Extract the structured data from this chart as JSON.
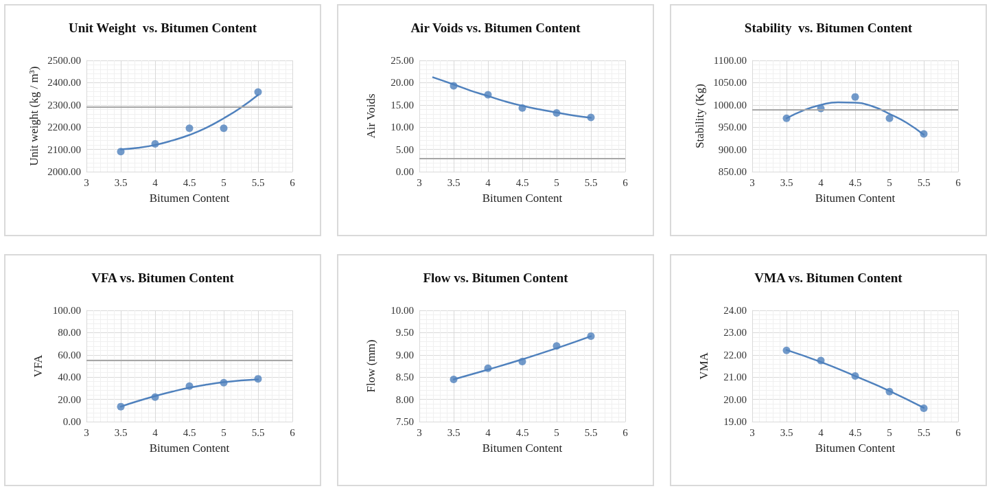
{
  "chart_data": [
    {
      "type": "scatter",
      "title": "Unit Weight  vs. Bitumen Content",
      "xlabel": "Bitumen Content",
      "ylabel": "Unit weight (kg / m³)",
      "xlim": [
        3,
        6
      ],
      "xticks": [
        3,
        3.5,
        4,
        4.5,
        5,
        5.5,
        6
      ],
      "ylim": [
        2000,
        2500
      ],
      "yticks": [
        {
          "value": 2000,
          "label": "2000.00"
        },
        {
          "value": 2100,
          "label": "2100.00"
        },
        {
          "value": 2200,
          "label": "2200.00"
        },
        {
          "value": 2300,
          "label": "2300.00"
        },
        {
          "value": 2400,
          "label": "2400.00"
        },
        {
          "value": 2500,
          "label": "2500.00"
        }
      ],
      "grid": true,
      "ref_lines": [
        {
          "axis": "y",
          "value": 2290,
          "color": "#a6a6a6"
        }
      ],
      "series": [
        {
          "color": "#4f81bd",
          "marker": "circle",
          "x": [
            3.5,
            4,
            4.5,
            5,
            5.5
          ],
          "values": [
            2090,
            2125,
            2195,
            2195,
            2358
          ]
        },
        {
          "type": "line",
          "color": "#4f81bd",
          "marker": "none",
          "x": [
            3.5,
            3.75,
            4,
            4.25,
            4.5,
            4.75,
            5,
            5.25,
            5.5
          ],
          "values": [
            2100,
            2107,
            2120,
            2140,
            2165,
            2198,
            2240,
            2288,
            2345
          ]
        }
      ]
    },
    {
      "type": "scatter",
      "title": "Air Voids vs. Bitumen Content",
      "xlabel": "Bitumen Content",
      "ylabel": "Air Voids",
      "xlim": [
        3,
        6
      ],
      "xticks": [
        3,
        3.5,
        4,
        4.5,
        5,
        5.5,
        6
      ],
      "ylim": [
        0,
        25
      ],
      "yticks": [
        {
          "value": 0,
          "label": "0.00"
        },
        {
          "value": 5,
          "label": "5.00"
        },
        {
          "value": 10,
          "label": "10.00"
        },
        {
          "value": 15,
          "label": "15.00"
        },
        {
          "value": 20,
          "label": "20.00"
        },
        {
          "value": 25,
          "label": "25.00"
        }
      ],
      "grid": true,
      "ref_lines": [
        {
          "axis": "y",
          "value": 3,
          "color": "#a6a6a6"
        }
      ],
      "series": [
        {
          "color": "#4f81bd",
          "marker": "circle",
          "x": [
            3.5,
            4,
            4.5,
            5,
            5.5
          ],
          "values": [
            19.3,
            17.3,
            14.3,
            13.2,
            12.2
          ]
        },
        {
          "type": "line",
          "color": "#4f81bd",
          "marker": "none",
          "x": [
            3.2,
            3.5,
            3.75,
            4,
            4.25,
            4.5,
            4.75,
            5,
            5.25,
            5.5
          ],
          "values": [
            21.2,
            19.6,
            18.2,
            17.0,
            15.8,
            14.8,
            14.0,
            13.3,
            12.6,
            12.1
          ]
        }
      ]
    },
    {
      "type": "scatter",
      "title": "Stability  vs. Bitumen Content",
      "xlabel": "Bitumen Content",
      "ylabel": "Stability (Kg)",
      "xlim": [
        3,
        6
      ],
      "xticks": [
        3,
        3.5,
        4,
        4.5,
        5,
        5.5,
        6
      ],
      "ylim": [
        850,
        1100
      ],
      "yticks": [
        {
          "value": 850,
          "label": "850.00"
        },
        {
          "value": 900,
          "label": "900.00"
        },
        {
          "value": 950,
          "label": "950.00"
        },
        {
          "value": 1000,
          "label": "1000.00"
        },
        {
          "value": 1050,
          "label": "1050.00"
        },
        {
          "value": 1100,
          "label": "1100.00"
        }
      ],
      "grid": true,
      "ref_lines": [
        {
          "axis": "y",
          "value": 990,
          "color": "#a6a6a6"
        }
      ],
      "series": [
        {
          "color": "#4f81bd",
          "marker": "circle",
          "x": [
            3.5,
            4,
            4.5,
            5,
            5.5
          ],
          "values": [
            970,
            992,
            1018,
            970,
            935
          ]
        },
        {
          "type": "line",
          "color": "#4f81bd",
          "marker": "none",
          "x": [
            3.5,
            3.75,
            4,
            4.25,
            4.5,
            4.75,
            5,
            5.25,
            5.5
          ],
          "values": [
            970,
            988,
            1000,
            1006,
            1005,
            997,
            980,
            960,
            933
          ]
        }
      ]
    },
    {
      "type": "scatter",
      "title": "VFA vs. Bitumen Content",
      "xlabel": "Bitumen Content",
      "ylabel": "VFA",
      "xlim": [
        3,
        6
      ],
      "xticks": [
        3,
        3.5,
        4,
        4.5,
        5,
        5.5,
        6
      ],
      "ylim": [
        0,
        100
      ],
      "yticks": [
        {
          "value": 0,
          "label": "0.00"
        },
        {
          "value": 20,
          "label": "20.00"
        },
        {
          "value": 40,
          "label": "40.00"
        },
        {
          "value": 60,
          "label": "60.00"
        },
        {
          "value": 80,
          "label": "80.00"
        },
        {
          "value": 100,
          "label": "100.00"
        }
      ],
      "grid": true,
      "ref_lines": [
        {
          "axis": "y",
          "value": 55,
          "color": "#a6a6a6"
        }
      ],
      "series": [
        {
          "color": "#4f81bd",
          "marker": "circle",
          "x": [
            3.5,
            4,
            4.5,
            5,
            5.5
          ],
          "values": [
            13.5,
            22,
            32,
            35,
            38.5
          ]
        },
        {
          "type": "line",
          "color": "#4f81bd",
          "marker": "none",
          "x": [
            3.5,
            3.75,
            4,
            4.25,
            4.5,
            4.75,
            5,
            5.25,
            5.5
          ],
          "values": [
            13.5,
            18.5,
            23,
            27,
            30.5,
            33.3,
            35.5,
            37,
            38
          ]
        }
      ]
    },
    {
      "type": "scatter",
      "title": "Flow vs. Bitumen Content",
      "xlabel": "Bitumen Content",
      "ylabel": "Flow (mm)",
      "xlim": [
        3,
        6
      ],
      "xticks": [
        3,
        3.5,
        4,
        4.5,
        5,
        5.5,
        6
      ],
      "ylim": [
        7.5,
        10
      ],
      "yticks": [
        {
          "value": 7.5,
          "label": "7.50"
        },
        {
          "value": 8,
          "label": "8.00"
        },
        {
          "value": 8.5,
          "label": "8.50"
        },
        {
          "value": 9,
          "label": "9.00"
        },
        {
          "value": 9.5,
          "label": "9.50"
        },
        {
          "value": 10,
          "label": "10.00"
        }
      ],
      "grid": true,
      "series": [
        {
          "color": "#4f81bd",
          "marker": "circle",
          "x": [
            3.5,
            4,
            4.5,
            5,
            5.5
          ],
          "values": [
            8.45,
            8.7,
            8.85,
            9.2,
            9.42
          ]
        },
        {
          "type": "line",
          "color": "#4f81bd",
          "marker": "none",
          "x": [
            3.5,
            4,
            4.5,
            5,
            5.5
          ],
          "values": [
            8.45,
            8.67,
            8.9,
            9.15,
            9.42
          ]
        }
      ]
    },
    {
      "type": "scatter",
      "title": "VMA vs. Bitumen Content",
      "xlabel": "Bitumen Content",
      "ylabel": "VMA",
      "xlim": [
        3,
        6
      ],
      "xticks": [
        3,
        3.5,
        4,
        4.5,
        5,
        5.5,
        6
      ],
      "ylim": [
        19,
        24
      ],
      "yticks": [
        {
          "value": 19,
          "label": "19.00"
        },
        {
          "value": 20,
          "label": "20.00"
        },
        {
          "value": 21,
          "label": "21.00"
        },
        {
          "value": 22,
          "label": "22.00"
        },
        {
          "value": 23,
          "label": "23.00"
        },
        {
          "value": 24,
          "label": "24.00"
        }
      ],
      "grid": true,
      "series": [
        {
          "color": "#4f81bd",
          "marker": "circle",
          "x": [
            3.5,
            4,
            4.5,
            5,
            5.5
          ],
          "values": [
            22.2,
            21.75,
            21.05,
            20.35,
            19.6
          ]
        },
        {
          "type": "line",
          "color": "#4f81bd",
          "marker": "none",
          "x": [
            3.5,
            4,
            4.5,
            5,
            5.5
          ],
          "values": [
            22.22,
            21.68,
            21.05,
            20.38,
            19.62
          ]
        }
      ]
    }
  ]
}
